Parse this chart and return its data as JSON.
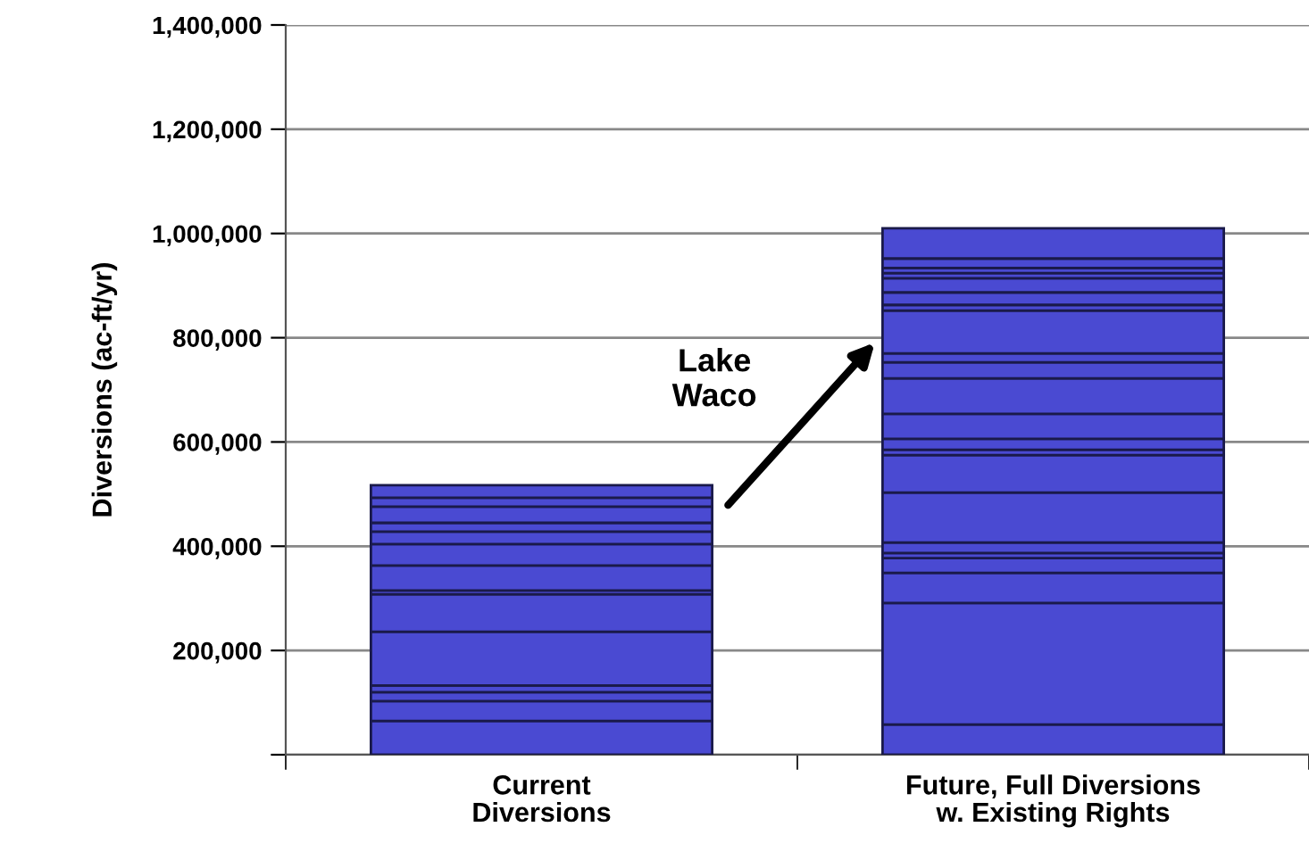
{
  "chart_data": {
    "type": "bar",
    "stacked": true,
    "categories": [
      "Current\nDiversions",
      "Future, Full Diversions\nw. Existing Rights"
    ],
    "ylabel": "Diversions (ac-ft/yr)",
    "ylim": [
      0,
      1400000
    ],
    "yticks": [
      {
        "value": 0,
        "label": null
      },
      {
        "value": 200000,
        "label": "200,000"
      },
      {
        "value": 400000,
        "label": "400,000"
      },
      {
        "value": 600000,
        "label": "600,000"
      },
      {
        "value": 800000,
        "label": "800,000"
      },
      {
        "value": 1000000,
        "label": "1,000,000"
      },
      {
        "value": 1200000,
        "label": "1,200,000"
      },
      {
        "value": 1400000,
        "label": "1,400,000"
      }
    ],
    "grid": "y",
    "series": [
      {
        "color": "#4a4ad2",
        "values": [
          65000,
          58000
        ]
      },
      {
        "color": "#4a4ad2",
        "values": [
          38000,
          233000
        ]
      },
      {
        "color": "#4a4ad2",
        "values": [
          17000,
          58000
        ]
      },
      {
        "color": "#4a4ad2",
        "values": [
          13000,
          28000
        ]
      },
      {
        "color": "#4a4ad2",
        "values": [
          103000,
          10000
        ]
      },
      {
        "color": "#4a4ad2",
        "values": [
          72000,
          20000
        ]
      },
      {
        "color": "#4a4ad2",
        "values": [
          7000,
          96000
        ]
      },
      {
        "color": "#4a4ad2",
        "values": [
          48000,
          72000
        ]
      },
      {
        "color": "#4a4ad2",
        "values": [
          41000,
          10000
        ]
      },
      {
        "color": "#4a4ad2",
        "values": [
          24000,
          21000
        ]
      },
      {
        "color": "#4a4ad2",
        "values": [
          17000,
          48000
        ]
      },
      {
        "color": "#4a4ad2",
        "values": [
          31000,
          68000
        ]
      },
      {
        "color": "#4a4ad2",
        "values": [
          17000,
          31000
        ]
      },
      {
        "color": "#4a4ad2",
        "values": [
          24000,
          17000
        ]
      },
      {
        "color": "#4a4ad2",
        "values": [
          null,
          82000
        ]
      },
      {
        "color": "#4a4ad2",
        "values": [
          null,
          11000
        ]
      },
      {
        "color": "#4a4ad2",
        "values": [
          null,
          24000
        ]
      },
      {
        "color": "#4a4ad2",
        "values": [
          null,
          27000
        ]
      },
      {
        "color": "#4a4ad2",
        "values": [
          null,
          10000
        ]
      },
      {
        "color": "#4a4ad2",
        "values": [
          null,
          10000
        ]
      },
      {
        "color": "#4a4ad2",
        "values": [
          null,
          18000
        ]
      },
      {
        "color": "#4a4ad2",
        "values": [
          null,
          58000
        ]
      }
    ],
    "annotations": [
      "Lake\nWaco"
    ]
  }
}
